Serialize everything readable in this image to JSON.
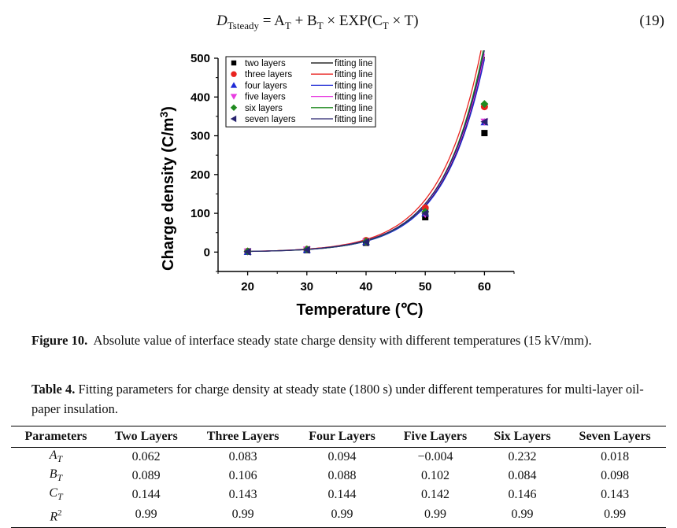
{
  "equation": {
    "lhs_symbol": "D",
    "lhs_subscript": "Tsteady",
    "rhs_prefix": "= A",
    "sub_T": "T",
    "rhs_mid1": " + B",
    "rhs_mid2": " × EXP(C",
    "rhs_end": " × T)",
    "number": "(19)"
  },
  "figure_caption": {
    "label": "Figure 10.",
    "text": "Absolute value of interface steady state charge density with different temperatures (15 kV/mm)."
  },
  "table_caption": {
    "label": "Table 4.",
    "text": "Fitting parameters for charge density at steady state (1800 s) under different temperatures for multi-layer oil-paper insulation."
  },
  "table": {
    "headers": [
      "Parameters",
      "Two Layers",
      "Three Layers",
      "Four Layers",
      "Five Layers",
      "Six Layers",
      "Seven Layers"
    ],
    "rows": [
      {
        "param": "A",
        "sub": "T",
        "sup": "",
        "values": [
          "0.062",
          "0.083",
          "0.094",
          "−0.004",
          "0.232",
          "0.018"
        ]
      },
      {
        "param": "B",
        "sub": "T",
        "sup": "",
        "values": [
          "0.089",
          "0.106",
          "0.088",
          "0.102",
          "0.084",
          "0.098"
        ]
      },
      {
        "param": "C",
        "sub": "T",
        "sup": "",
        "values": [
          "0.144",
          "0.143",
          "0.144",
          "0.142",
          "0.146",
          "0.143"
        ]
      },
      {
        "param": "R",
        "sub": "",
        "sup": "2",
        "values": [
          "0.99",
          "0.99",
          "0.99",
          "0.99",
          "0.99",
          "0.99"
        ]
      }
    ]
  },
  "chart_data": {
    "type": "scatter",
    "title": "",
    "xlabel": "Temperature (℃)",
    "ylabel": "Charge density (C/m",
    "ylabel_sup": "3",
    "ylabel_close": ")",
    "xlim": [
      15,
      65
    ],
    "ylim": [
      -50,
      500
    ],
    "xticks": [
      20,
      30,
      40,
      50,
      60
    ],
    "yticks": [
      0,
      100,
      200,
      300,
      400,
      500
    ],
    "grid": false,
    "legend_position": "top-left",
    "fit_label": "fitting line",
    "x": [
      20,
      30,
      40,
      50,
      60
    ],
    "series": [
      {
        "name": "two layers",
        "color": "#000000",
        "marker": "square",
        "values": [
          1,
          5,
          24,
          90,
          307
        ],
        "A": 0.062,
        "B": 0.089,
        "C": 0.144
      },
      {
        "name": "three layers",
        "color": "#e8231f",
        "marker": "circle",
        "values": [
          2,
          7,
          30,
          114,
          375
        ],
        "A": 0.083,
        "B": 0.106,
        "C": 0.143
      },
      {
        "name": "four layers",
        "color": "#1f2bd6",
        "marker": "triangle-up",
        "values": [
          1,
          6,
          26,
          100,
          335
        ],
        "A": 0.094,
        "B": 0.088,
        "C": 0.144
      },
      {
        "name": "five layers",
        "color": "#e83ce0",
        "marker": "triangle-down",
        "values": [
          1,
          6,
          26,
          98,
          336
        ],
        "A": -0.004,
        "B": 0.102,
        "C": 0.142
      },
      {
        "name": "six layers",
        "color": "#1f8a1f",
        "marker": "diamond",
        "values": [
          2,
          7,
          27,
          104,
          382
        ],
        "A": 0.232,
        "B": 0.084,
        "C": 0.146
      },
      {
        "name": "seven layers",
        "color": "#27236e",
        "marker": "triangle-left",
        "values": [
          1,
          6,
          26,
          100,
          336
        ],
        "A": 0.018,
        "B": 0.098,
        "C": 0.143
      }
    ]
  }
}
